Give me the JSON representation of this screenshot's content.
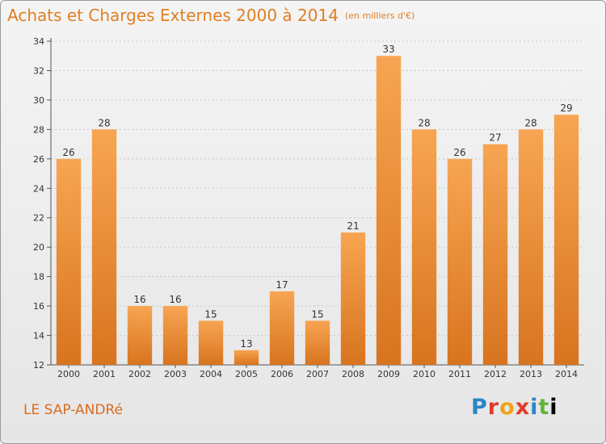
{
  "header": {
    "title": "Achats et Charges Externes 2000 à 2014",
    "unit": "(en milliers d'€)"
  },
  "footer": {
    "commune": "LE SAP-ANDRé",
    "logo_letters": [
      "P",
      "r",
      "o",
      "x",
      "i",
      "t",
      "i"
    ]
  },
  "colors": {
    "title": "#e07f22",
    "bar_top": "#f7a552",
    "bar_bottom": "#d8741f",
    "axis": "#555555",
    "grid": "#c8c8c8"
  },
  "chart_data": {
    "type": "bar",
    "categories": [
      "2000",
      "2001",
      "2002",
      "2003",
      "2004",
      "2005",
      "2006",
      "2007",
      "2008",
      "2009",
      "2010",
      "2011",
      "2012",
      "2013",
      "2014"
    ],
    "values": [
      26,
      28,
      16,
      16,
      15,
      13,
      17,
      15,
      21,
      33,
      28,
      26,
      27,
      28,
      29
    ],
    "yticks": [
      12,
      14,
      16,
      18,
      20,
      22,
      24,
      26,
      28,
      30,
      32,
      34
    ],
    "ylim": [
      12,
      34
    ],
    "grid": true
  }
}
